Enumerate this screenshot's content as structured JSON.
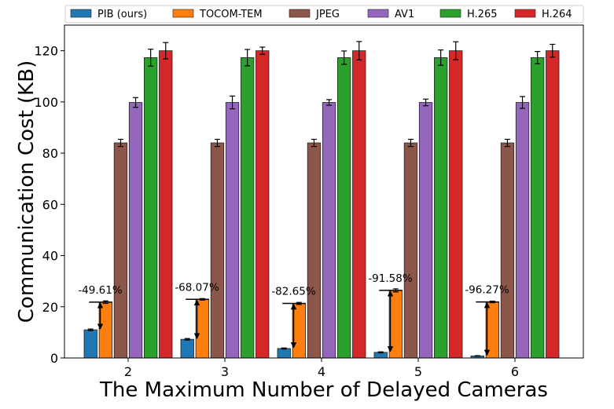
{
  "chart_data": {
    "type": "bar",
    "title": "",
    "xlabel": "The Maximum Number of Delayed Cameras",
    "ylabel": "Communication Cost (KB)",
    "categories": [
      "2",
      "3",
      "4",
      "5",
      "6"
    ],
    "ylim": [
      0,
      130
    ],
    "yticks": [
      0,
      20,
      40,
      60,
      80,
      100,
      120
    ],
    "grid": false,
    "legend_position": "top",
    "series": [
      {
        "name": "PIB (ours)",
        "color": "#1f77b4",
        "values": [
          11.0,
          7.3,
          3.7,
          2.2,
          0.8
        ],
        "errors": [
          0.3,
          0.3,
          0.2,
          0.2,
          0.1
        ]
      },
      {
        "name": "TOCOM-TEM",
        "color": "#ff7f0e",
        "values": [
          21.8,
          22.9,
          21.3,
          26.4,
          21.9
        ],
        "errors": [
          0.5,
          0.3,
          0.4,
          0.6,
          0.3
        ]
      },
      {
        "name": "JPEG",
        "color": "#8c564b",
        "values": [
          84.0,
          84.0,
          84.0,
          84.0,
          84.0
        ],
        "errors": [
          1.4,
          1.4,
          1.4,
          1.4,
          1.4
        ]
      },
      {
        "name": "AV1",
        "color": "#9467bd",
        "values": [
          99.8,
          99.8,
          99.8,
          99.8,
          99.8
        ],
        "errors": [
          1.9,
          2.5,
          1.1,
          1.3,
          2.3
        ]
      },
      {
        "name": "H.265",
        "color": "#2ca02c",
        "values": [
          117.3,
          117.3,
          117.3,
          117.3,
          117.3
        ],
        "errors": [
          3.3,
          3.2,
          2.6,
          3.0,
          2.4
        ]
      },
      {
        "name": "H.264",
        "color": "#d62728",
        "values": [
          120.0,
          120.0,
          120.0,
          120.0,
          120.0
        ],
        "errors": [
          3.2,
          1.4,
          3.6,
          3.5,
          2.5
        ]
      }
    ],
    "annotations": [
      "-49.61%",
      "-68.07%",
      "-82.65%",
      "-91.58%",
      "-96.27%"
    ]
  }
}
